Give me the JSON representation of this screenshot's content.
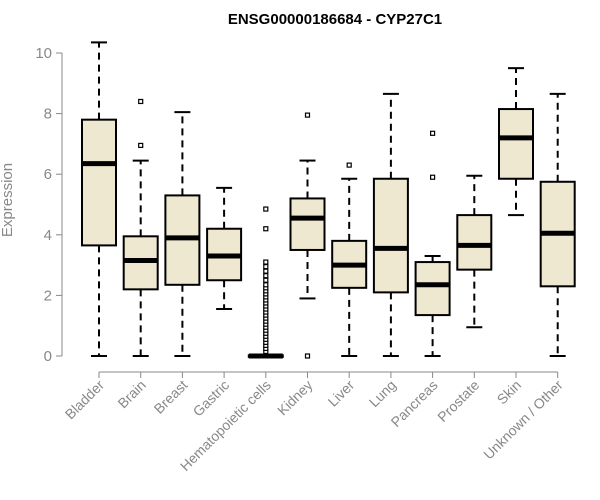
{
  "chart_data": {
    "type": "box",
    "title": "ENSG00000186684 - CYP27C1",
    "xlabel": "",
    "ylabel": "Expression",
    "ylim": [
      0,
      10.5
    ],
    "yticks": [
      0,
      2,
      4,
      6,
      8,
      10
    ],
    "box_fill": "#EEE8D0",
    "stroke": "#000000",
    "axis_color": "#888888",
    "categories": [
      "Bladder",
      "Brain",
      "Breast",
      "Gastric",
      "Hematopoietic cells",
      "Kidney",
      "Liver",
      "Lung",
      "Pancreas",
      "Prostate",
      "Skin",
      "Unknown / Other"
    ],
    "boxes": [
      {
        "name": "Bladder",
        "whisker_low": 0,
        "q1": 3.65,
        "median": 6.35,
        "q3": 7.8,
        "whisker_high": 10.35,
        "outliers": []
      },
      {
        "name": "Brain",
        "whisker_low": 0,
        "q1": 2.2,
        "median": 3.15,
        "q3": 3.95,
        "whisker_high": 6.45,
        "outliers": [
          6.95,
          8.4
        ]
      },
      {
        "name": "Breast",
        "whisker_low": 0,
        "q1": 2.35,
        "median": 3.9,
        "q3": 5.3,
        "whisker_high": 8.05,
        "outliers": []
      },
      {
        "name": "Gastric",
        "whisker_low": 1.55,
        "q1": 2.5,
        "median": 3.3,
        "q3": 4.2,
        "whisker_high": 5.55,
        "outliers": []
      },
      {
        "name": "Hematopoietic cells",
        "whisker_low": 0,
        "q1": 0,
        "median": 0,
        "q3": 0.02,
        "whisker_high": 0.05,
        "outliers": [
          0.15,
          0.25,
          0.35,
          0.45,
          0.55,
          0.65,
          0.75,
          0.85,
          0.95,
          1.05,
          1.15,
          1.25,
          1.35,
          1.45,
          1.55,
          1.65,
          1.75,
          1.85,
          1.95,
          2.05,
          2.15,
          2.25,
          2.35,
          2.5,
          2.65,
          2.8,
          2.95,
          3.1,
          4.2,
          4.85
        ]
      },
      {
        "name": "Kidney",
        "whisker_low": 1.9,
        "q1": 3.5,
        "median": 4.55,
        "q3": 5.2,
        "whisker_high": 6.45,
        "outliers": [
          0,
          7.95
        ]
      },
      {
        "name": "Liver",
        "whisker_low": 0,
        "q1": 2.25,
        "median": 3.0,
        "q3": 3.8,
        "whisker_high": 5.85,
        "outliers": [
          6.3
        ]
      },
      {
        "name": "Lung",
        "whisker_low": 0,
        "q1": 2.1,
        "median": 3.55,
        "q3": 5.85,
        "whisker_high": 8.65,
        "outliers": []
      },
      {
        "name": "Pancreas",
        "whisker_low": 0,
        "q1": 1.35,
        "median": 2.35,
        "q3": 3.1,
        "whisker_high": 3.3,
        "outliers": [
          5.9,
          7.35
        ]
      },
      {
        "name": "Prostate",
        "whisker_low": 0.95,
        "q1": 2.85,
        "median": 3.65,
        "q3": 4.65,
        "whisker_high": 5.95,
        "outliers": []
      },
      {
        "name": "Skin",
        "whisker_low": 4.65,
        "q1": 5.85,
        "median": 7.2,
        "q3": 8.15,
        "whisker_high": 9.5,
        "outliers": []
      },
      {
        "name": "Unknown / Other",
        "whisker_low": 0,
        "q1": 2.3,
        "median": 4.05,
        "q3": 5.75,
        "whisker_high": 8.65,
        "outliers": []
      }
    ]
  }
}
